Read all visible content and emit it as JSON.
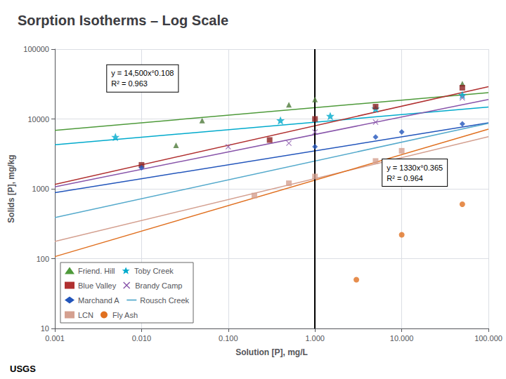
{
  "chart_data": {
    "type": "scatter",
    "title": "Sorption Isotherms – Log Scale",
    "xlabel": "Solution [P], mg/L",
    "ylabel": "Solids [P], mg/kg",
    "log": true,
    "grid": true,
    "legend": "lower left",
    "xlim": [
      0.001,
      100.0
    ],
    "ylim": [
      10,
      100000
    ],
    "xticks": [
      0.001,
      {
        "value": 0.01,
        "label": "0.010"
      },
      {
        "value": 0.1,
        "label": "0.100"
      },
      {
        "value": 1,
        "label": "1.000"
      },
      {
        "value": 10,
        "label": "10.000"
      },
      {
        "value": 100,
        "label": "100.000"
      }
    ],
    "yticks": [
      10,
      100,
      1000,
      10000,
      100000
    ],
    "vline": {
      "x": 1.0,
      "color": "#000000"
    },
    "annotations": [
      {
        "text": "y = 14,500x°0.108\nR² = 0.963",
        "x": 0.004,
        "y": 38000
      },
      {
        "text": "y = 1330x°0.365\nR² = 0.964",
        "x": 6.0,
        "y": 1700
      }
    ],
    "footer": "USGS",
    "series": [
      {
        "name": "Friend. Hill",
        "type": "line",
        "color": "#4E9A3A",
        "x": [
          0.001,
          100.0
        ],
        "values": [
          6876.5,
          23843.4
        ]
      },
      {
        "name": "Friend. Hill",
        "type": "scatter",
        "color": "#4E7A3A",
        "marker": "triangle",
        "x": [
          0.025,
          0.05,
          0.5,
          1.0,
          50.0
        ],
        "values": [
          4200,
          9500,
          16000,
          19000,
          32000
        ]
      },
      {
        "name": "Toby Creek",
        "type": "line",
        "color": "#00AACC",
        "x": [
          0.001,
          100.0
        ],
        "values": [
          4268.2,
          14799.3
        ]
      },
      {
        "name": "Toby Creek",
        "type": "scatter",
        "color": "#00AACC",
        "marker": "star",
        "x": [
          0.005,
          0.4,
          1.5,
          5.0,
          50.0
        ],
        "values": [
          5500,
          9500,
          11000,
          14000,
          22000
        ]
      },
      {
        "name": "Blue Valley",
        "type": "line",
        "color": "#B03030",
        "x": [
          0.001,
          100.0
        ],
        "values": [
          1156.3,
          29046.2
        ]
      },
      {
        "name": "Blue Valley",
        "type": "scatter",
        "color": "#8B2020",
        "marker": "square",
        "x": [
          0.01,
          0.3,
          1.0,
          5.0,
          50.0
        ],
        "values": [
          2200,
          5000,
          10000,
          15000,
          28000
        ]
      },
      {
        "name": "Brandy Camp",
        "type": "line",
        "color": "#8855AA",
        "x": [
          0.001,
          100.0
        ],
        "values": [
          1067.0,
          18973.7
        ]
      },
      {
        "name": "Brandy Camp",
        "type": "scatter",
        "color": "#8855AA",
        "marker": "x",
        "x": [
          0.1,
          0.5,
          1.0,
          5.0,
          50.0
        ],
        "values": [
          4000,
          4500,
          6500,
          9000,
          20000
        ]
      },
      {
        "name": "Marchand A",
        "type": "line",
        "color": "#2255BB",
        "x": [
          0.001,
          100.0
        ],
        "values": [
          879.2,
          8791.6
        ]
      },
      {
        "name": "Marchand A",
        "type": "scatter",
        "color": "#2255BB",
        "marker": "diamond",
        "x": [
          0.01,
          1.0,
          5.0,
          10.0,
          50.0
        ],
        "values": [
          2000,
          4000,
          5500,
          6500,
          8500
        ]
      },
      {
        "name": "Rousch Creek",
        "type": "line",
        "color": "#55AACC",
        "x": [
          0.001,
          100.0
        ],
        "values": [
          387.2,
          8668.4
        ]
      },
      {
        "name": "LCN",
        "type": "line",
        "color": "#D4A090",
        "x": [
          0.001,
          100.0
        ],
        "values": [
          176.25,
          5573.5
        ]
      },
      {
        "name": "LCN",
        "type": "scatter",
        "color": "#D4A090",
        "marker": "square",
        "x": [
          0.2,
          0.5,
          1.0,
          5.0,
          10.0
        ],
        "values": [
          800,
          1200,
          1500,
          2500,
          3500
        ]
      },
      {
        "name": "Fly Ash",
        "type": "line",
        "color": "#E07020",
        "x": [
          0.001,
          100.0
        ],
        "values": [
          106.87,
          7142.5
        ]
      },
      {
        "name": "Fly Ash",
        "type": "scatter",
        "color": "#E07020",
        "marker": "circle",
        "x": [
          3.0,
          10.0,
          50.0
        ],
        "values": [
          50,
          220,
          600
        ]
      }
    ]
  }
}
